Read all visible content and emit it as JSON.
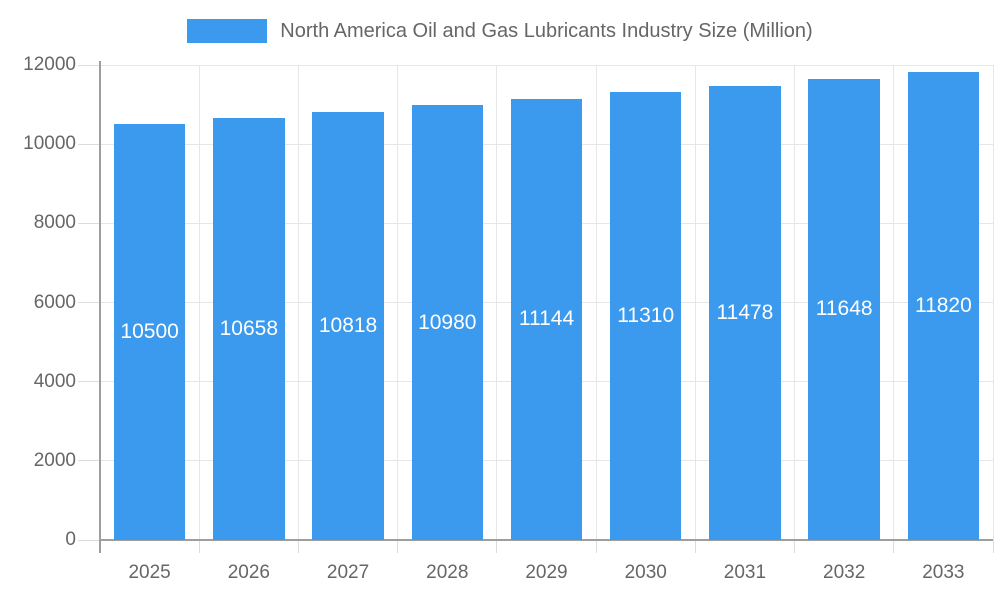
{
  "chart_data": {
    "type": "bar",
    "title": "North America Oil and Gas Lubricants Industry Size (Million)",
    "categories": [
      "2025",
      "2026",
      "2027",
      "2028",
      "2029",
      "2030",
      "2031",
      "2032",
      "2033"
    ],
    "values": [
      10500,
      10658,
      10818,
      10980,
      11144,
      11310,
      11478,
      11648,
      11820
    ],
    "series": [
      {
        "name": "North America Oil and Gas Lubricants Industry Size (Million)",
        "values": [
          10500,
          10658,
          10818,
          10980,
          11144,
          11310,
          11478,
          11648,
          11820
        ]
      }
    ],
    "xlabel": "",
    "ylabel": "",
    "ylim": [
      0,
      12000
    ],
    "y_ticks": [
      0,
      2000,
      4000,
      6000,
      8000,
      10000,
      12000
    ],
    "grid": true,
    "legend_position": "top",
    "value_labels": "inside-center"
  },
  "colors": {
    "bar": "#3B9AED",
    "bar_value_label": "#FFFFFF",
    "axis_text": "#666666",
    "legend_text": "#666666",
    "gridline": "#E6E6E6",
    "tick": "#DCDCDC",
    "axis_line": "#9E9E9E",
    "background": "#FFFFFF"
  }
}
